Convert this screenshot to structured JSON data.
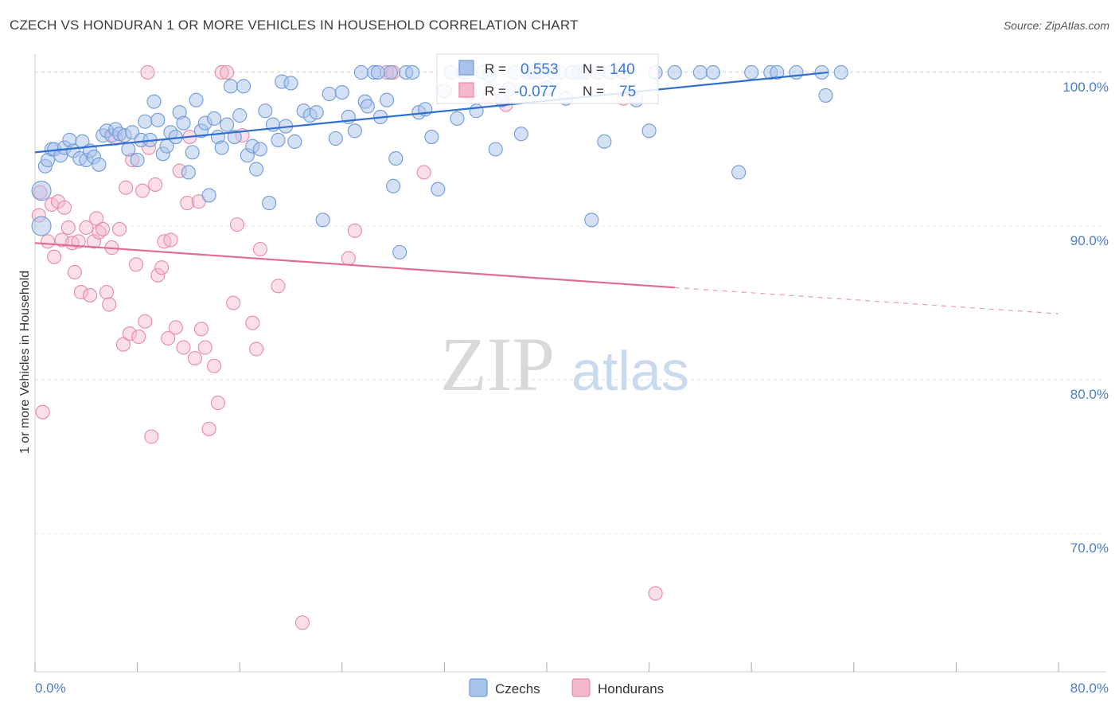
{
  "title": "CZECH VS HONDURAN 1 OR MORE VEHICLES IN HOUSEHOLD CORRELATION CHART",
  "source": "Source: ZipAtlas.com",
  "watermark": {
    "zip": "ZIP",
    "atlas": "atlas"
  },
  "colors": {
    "czech_fill": "#a9c4ea",
    "czech_stroke": "#6f9ad8",
    "czech_line": "#2f6fcf",
    "hond_fill": "#f4b8cb",
    "hond_stroke": "#e88aa8",
    "hond_line": "#e06d97",
    "tick_text": "#4a7ec9",
    "grid": "#e3e3e3"
  },
  "legend_top": {
    "row1": {
      "r_label": "R =",
      "r_value": "0.553",
      "n_label": "N =",
      "n_value": "140"
    },
    "row2": {
      "r_label": "R =",
      "r_value": "-0.077",
      "n_label": "N =",
      "n_value": "75"
    }
  },
  "chart_data": {
    "type": "scatter",
    "xlabel": "",
    "ylabel": "1 or more Vehicles in Household",
    "xlim": [
      0,
      80
    ],
    "ylim": [
      61,
      101.5
    ],
    "x_ticks": [
      "0.0%",
      "80.0%"
    ],
    "y_ticks": [
      {
        "value": 100,
        "label": "100.0%"
      },
      {
        "value": 90,
        "label": "90.0%"
      },
      {
        "value": 80,
        "label": "80.0%"
      },
      {
        "value": 70,
        "label": "70.0%"
      }
    ],
    "legend_placement": "bottom-center",
    "series": [
      {
        "name": "Czechs",
        "trend": {
          "x0": 0,
          "y0": 94.8,
          "x1": 62,
          "y1": 100.0
        },
        "points": [
          [
            0.5,
            90
          ],
          [
            0.5,
            92.3
          ],
          [
            0.8,
            93.9
          ],
          [
            1,
            94.3
          ],
          [
            1.3,
            95
          ],
          [
            1.5,
            95
          ],
          [
            2,
            94.6
          ],
          [
            2.3,
            95.1
          ],
          [
            2.7,
            95.6
          ],
          [
            3,
            94.9
          ],
          [
            3.5,
            94.4
          ],
          [
            3.7,
            95.5
          ],
          [
            4,
            94.3
          ],
          [
            4.3,
            94.9
          ],
          [
            4.6,
            94.5
          ],
          [
            5,
            94
          ],
          [
            5.3,
            95.9
          ],
          [
            5.6,
            96.2
          ],
          [
            6,
            95.9
          ],
          [
            6.3,
            96.3
          ],
          [
            6.6,
            96
          ],
          [
            7,
            95.9
          ],
          [
            7.3,
            95
          ],
          [
            7.6,
            96.1
          ],
          [
            8,
            94.3
          ],
          [
            8.3,
            95.6
          ],
          [
            8.6,
            96.8
          ],
          [
            9,
            95.6
          ],
          [
            9.3,
            98.1
          ],
          [
            9.6,
            96.9
          ],
          [
            10,
            94.7
          ],
          [
            10.3,
            95.2
          ],
          [
            10.6,
            96.1
          ],
          [
            11,
            95.8
          ],
          [
            11.3,
            97.4
          ],
          [
            11.6,
            96.7
          ],
          [
            12,
            93.5
          ],
          [
            12.3,
            94.8
          ],
          [
            12.6,
            98.2
          ],
          [
            13,
            96.2
          ],
          [
            13.3,
            96.7
          ],
          [
            13.6,
            92
          ],
          [
            14,
            97
          ],
          [
            14.3,
            95.8
          ],
          [
            14.6,
            95.1
          ],
          [
            15,
            96.6
          ],
          [
            15.3,
            99.1
          ],
          [
            15.6,
            95.8
          ],
          [
            16,
            97.2
          ],
          [
            16.3,
            99.1
          ],
          [
            16.6,
            94.6
          ],
          [
            17,
            95.2
          ],
          [
            17.3,
            93.7
          ],
          [
            17.6,
            95
          ],
          [
            18,
            97.5
          ],
          [
            18.3,
            91.5
          ],
          [
            18.6,
            96.6
          ],
          [
            19,
            95.6
          ],
          [
            19.3,
            99.4
          ],
          [
            19.6,
            96.5
          ],
          [
            20,
            99.3
          ],
          [
            20.3,
            95.5
          ],
          [
            21,
            97.5
          ],
          [
            21.5,
            97.2
          ],
          [
            22,
            97.4
          ],
          [
            22.5,
            90.4
          ],
          [
            23,
            98.6
          ],
          [
            23.5,
            95.7
          ],
          [
            24,
            98.7
          ],
          [
            24.5,
            97.1
          ],
          [
            25,
            96.2
          ],
          [
            25.5,
            100
          ],
          [
            25.8,
            98.1
          ],
          [
            26,
            97.8
          ],
          [
            26.5,
            100
          ],
          [
            27,
            97.1
          ],
          [
            27.5,
            98.2
          ],
          [
            27.8,
            100
          ],
          [
            28,
            92.6
          ],
          [
            28.2,
            94.4
          ],
          [
            28.5,
            88.3
          ],
          [
            29,
            100
          ],
          [
            29.5,
            100
          ],
          [
            30,
            97.4
          ],
          [
            30.5,
            97.6
          ],
          [
            31,
            95.8
          ],
          [
            31.5,
            92.4
          ],
          [
            32,
            98.8
          ],
          [
            32.5,
            100
          ],
          [
            33,
            97
          ],
          [
            33.5,
            100
          ],
          [
            34,
            98.7
          ],
          [
            34.5,
            97.5
          ],
          [
            35,
            100
          ],
          [
            35.5,
            99.8
          ],
          [
            36,
            95
          ],
          [
            36.5,
            98.2
          ],
          [
            37,
            98.9
          ],
          [
            37.5,
            100
          ],
          [
            38,
            96
          ],
          [
            38.5,
            100
          ],
          [
            39,
            100
          ],
          [
            39.5,
            100
          ],
          [
            40,
            99
          ],
          [
            40.5,
            100
          ],
          [
            41,
            100
          ],
          [
            41.5,
            98.3
          ],
          [
            42,
            100
          ],
          [
            42.5,
            100
          ],
          [
            43,
            100
          ],
          [
            43.5,
            90.4
          ],
          [
            44,
            100
          ],
          [
            44.5,
            95.5
          ],
          [
            45,
            100
          ],
          [
            46,
            100
          ],
          [
            47,
            98.2
          ],
          [
            48,
            96.2
          ],
          [
            48.5,
            100
          ],
          [
            50,
            100
          ],
          [
            52,
            100
          ],
          [
            53,
            100
          ],
          [
            55,
            93.5
          ],
          [
            56,
            100
          ],
          [
            57.5,
            100
          ],
          [
            58,
            100
          ],
          [
            59.5,
            100
          ],
          [
            61.5,
            100
          ],
          [
            61.8,
            98.5
          ],
          [
            63,
            100
          ],
          [
            26.8,
            100
          ]
        ]
      },
      {
        "name": "Hondurans",
        "trend": {
          "x0": 0,
          "y0": 88.9,
          "x1": 50,
          "y1": 86.0
        },
        "trend_dashed": {
          "x0": 50,
          "y0": 86.0,
          "x1": 80,
          "y1": 84.3
        },
        "points": [
          [
            0.3,
            90.7
          ],
          [
            0.4,
            92.2
          ],
          [
            0.6,
            77.9
          ],
          [
            1,
            89
          ],
          [
            1.3,
            91.4
          ],
          [
            1.5,
            88
          ],
          [
            1.8,
            91.6
          ],
          [
            2.1,
            89.1
          ],
          [
            2.3,
            91.2
          ],
          [
            2.6,
            89.9
          ],
          [
            2.9,
            88.9
          ],
          [
            3.1,
            87
          ],
          [
            3.4,
            89
          ],
          [
            3.6,
            85.7
          ],
          [
            4,
            89.9
          ],
          [
            4.3,
            85.5
          ],
          [
            4.6,
            89
          ],
          [
            4.8,
            90.5
          ],
          [
            5,
            89.6
          ],
          [
            5.3,
            89.8
          ],
          [
            5.6,
            85.7
          ],
          [
            5.8,
            84.9
          ],
          [
            6,
            88.6
          ],
          [
            6.3,
            95.7
          ],
          [
            6.6,
            89.8
          ],
          [
            6.9,
            82.3
          ],
          [
            7.1,
            92.5
          ],
          [
            7.4,
            83
          ],
          [
            7.6,
            94.3
          ],
          [
            7.9,
            87.5
          ],
          [
            8.1,
            82.8
          ],
          [
            8.4,
            92.3
          ],
          [
            8.6,
            83.8
          ],
          [
            8.9,
            95.1
          ],
          [
            9.1,
            76.3
          ],
          [
            9.4,
            92.7
          ],
          [
            9.6,
            86.8
          ],
          [
            9.9,
            87.3
          ],
          [
            10.1,
            89
          ],
          [
            10.4,
            82.7
          ],
          [
            10.6,
            89.1
          ],
          [
            11,
            83.4
          ],
          [
            11.3,
            93.6
          ],
          [
            11.6,
            82.1
          ],
          [
            11.9,
            91.5
          ],
          [
            12.1,
            95.8
          ],
          [
            12.5,
            81.4
          ],
          [
            12.8,
            91.6
          ],
          [
            13,
            83.3
          ],
          [
            13.3,
            82.1
          ],
          [
            13.6,
            76.8
          ],
          [
            14,
            80.9
          ],
          [
            14.3,
            78.5
          ],
          [
            14.6,
            100
          ],
          [
            15,
            100
          ],
          [
            15.5,
            85
          ],
          [
            15.8,
            90.1
          ],
          [
            16.2,
            95.9
          ],
          [
            17,
            83.7
          ],
          [
            17.3,
            82
          ],
          [
            17.6,
            88.5
          ],
          [
            19,
            86.1
          ],
          [
            20.9,
            64.2
          ],
          [
            24.5,
            87.9
          ],
          [
            25,
            89.7
          ],
          [
            27.5,
            100
          ],
          [
            30.4,
            93.5
          ],
          [
            34,
            98.6
          ],
          [
            35.5,
            98.5
          ],
          [
            48.5,
            66.1
          ],
          [
            8.8,
            100
          ],
          [
            28,
            100
          ],
          [
            39,
            100
          ],
          [
            46,
            98.3
          ],
          [
            36.8,
            97.9
          ]
        ]
      }
    ]
  },
  "legend_bottom": [
    {
      "label": "Czechs"
    },
    {
      "label": "Hondurans"
    }
  ]
}
